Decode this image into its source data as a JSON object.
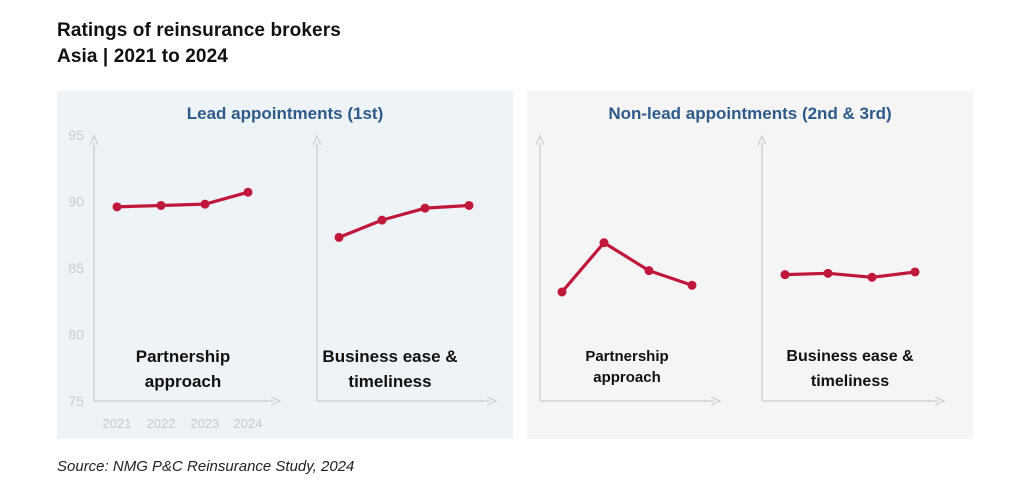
{
  "title": "Ratings of reinsurance brokers",
  "subtitle": "Asia | 2021 to 2024",
  "source": "Source: NMG P&C Reinsurance Study, 2024",
  "colors": {
    "line": "#c0183a",
    "axis": "#d0d4d8",
    "tick_text": "#c8cbce",
    "panel_title": "#2e5a8a",
    "panel_lead_bg": "#eef3f7",
    "panel_nonlead_bg": "#f5f5f5"
  },
  "groups": [
    {
      "title": "Lead appointments (1st)"
    },
    {
      "title": "Non-lead appointments (2nd & 3rd)"
    }
  ],
  "chart_data": [
    {
      "type": "line",
      "group": "Lead appointments (1st)",
      "label": [
        "Partnership",
        "approach"
      ],
      "x": [
        "2021",
        "2022",
        "2023",
        "2024"
      ],
      "values": [
        89.6,
        89.7,
        89.8,
        90.7
      ],
      "ylim": [
        75,
        95
      ],
      "yticks": [
        75,
        80,
        85,
        90,
        95
      ],
      "show_x_ticks": true,
      "show_y_ticks": true
    },
    {
      "type": "line",
      "group": "Lead appointments (1st)",
      "label": [
        "Business ease &",
        "timeliness"
      ],
      "x": [
        "2021",
        "2022",
        "2023",
        "2024"
      ],
      "values": [
        87.3,
        88.6,
        89.5,
        89.7
      ],
      "ylim": [
        75,
        95
      ],
      "show_x_ticks": false,
      "show_y_ticks": false
    },
    {
      "type": "line",
      "group": "Non-lead appointments (2nd & 3rd)",
      "label": [
        "Partnership",
        "approach"
      ],
      "x": [
        "2021",
        "2022",
        "2023",
        "2024"
      ],
      "values": [
        83.2,
        86.9,
        84.8,
        83.7
      ],
      "ylim": [
        75,
        95
      ],
      "show_x_ticks": false,
      "show_y_ticks": false
    },
    {
      "type": "line",
      "group": "Non-lead appointments (2nd & 3rd)",
      "label": [
        "Business ease &",
        "timeliness"
      ],
      "x": [
        "2021",
        "2022",
        "2023",
        "2024"
      ],
      "values": [
        84.5,
        84.6,
        84.3,
        84.7
      ],
      "ylim": [
        75,
        95
      ],
      "show_x_ticks": false,
      "show_y_ticks": false
    }
  ]
}
